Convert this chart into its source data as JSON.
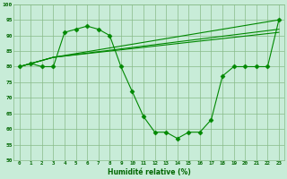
{
  "xlabel": "Humidité relative (%)",
  "bg_color": "#c8ecd8",
  "grid_color": "#88bb88",
  "line_color": "#008800",
  "ylim": [
    50,
    100
  ],
  "xlim": [
    -0.5,
    23.5
  ],
  "yticks": [
    50,
    55,
    60,
    65,
    70,
    75,
    80,
    85,
    90,
    95,
    100
  ],
  "xticks": [
    0,
    1,
    2,
    3,
    4,
    5,
    6,
    7,
    8,
    9,
    10,
    11,
    12,
    13,
    14,
    15,
    16,
    17,
    18,
    19,
    20,
    21,
    22,
    23
  ],
  "lines": [
    {
      "x": [
        0,
        1,
        2,
        3,
        4,
        5,
        6,
        7,
        8,
        9,
        10,
        11,
        12,
        13,
        14,
        15,
        16,
        17,
        18,
        19,
        20,
        21,
        22,
        23
      ],
      "y": [
        80,
        81,
        80,
        80,
        91,
        92,
        93,
        92,
        90,
        80,
        72,
        64,
        59,
        59,
        57,
        59,
        59,
        63,
        77,
        80,
        80,
        80,
        80,
        95
      ],
      "marker": "D",
      "markersize": 2.5
    },
    {
      "x": [
        0,
        3,
        23
      ],
      "y": [
        80,
        83,
        95
      ],
      "marker": null,
      "markersize": 0
    },
    {
      "x": [
        0,
        3,
        23
      ],
      "y": [
        80,
        83,
        92
      ],
      "marker": null,
      "markersize": 0
    },
    {
      "x": [
        0,
        3,
        23
      ],
      "y": [
        80,
        83,
        91
      ],
      "marker": null,
      "markersize": 0
    }
  ]
}
